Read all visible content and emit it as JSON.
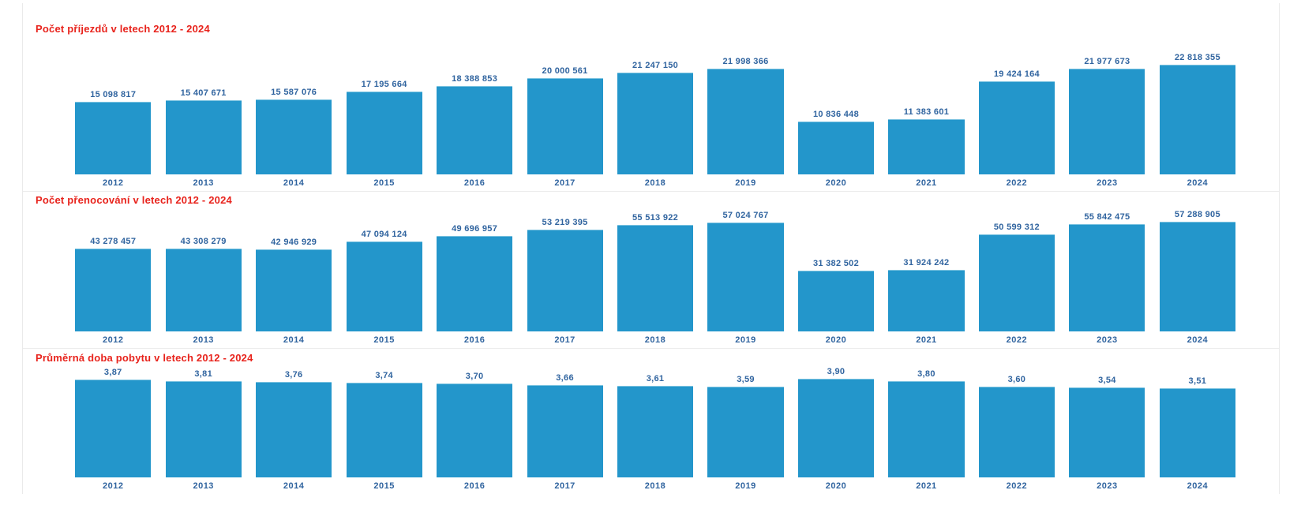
{
  "colors": {
    "bar_fill": "#2396cb",
    "label_text": "#30649f",
    "title_text": "#e8231c",
    "separator": "#ececec",
    "background": "#ffffff"
  },
  "chart_data": [
    {
      "type": "bar",
      "title": "Počet příjezdů v letech 2012 - 2024",
      "xlabel": "",
      "ylabel": "",
      "ylim": [
        0,
        22818355
      ],
      "grid": false,
      "legend": "none",
      "categories": [
        "2012",
        "2013",
        "2014",
        "2015",
        "2016",
        "2017",
        "2018",
        "2019",
        "2020",
        "2021",
        "2022",
        "2023",
        "2024"
      ],
      "values": [
        15098817,
        15407671,
        15587076,
        17195664,
        18388853,
        20000561,
        21247150,
        21998366,
        10836448,
        11383601,
        19424164,
        21977673,
        22818355
      ],
      "value_labels": [
        "15 098 817",
        "15 407 671",
        "15 587 076",
        "17 195 664",
        "18 388 853",
        "20 000 561",
        "21 247 150",
        "21 998 366",
        "10 836 448",
        "11 383 601",
        "19 424 164",
        "21 977 673",
        "22 818 355"
      ]
    },
    {
      "type": "bar",
      "title": "Počet přenocování v letech 2012 - 2024",
      "xlabel": "",
      "ylabel": "",
      "ylim": [
        0,
        57288905
      ],
      "grid": false,
      "legend": "none",
      "categories": [
        "2012",
        "2013",
        "2014",
        "2015",
        "2016",
        "2017",
        "2018",
        "2019",
        "2020",
        "2021",
        "2022",
        "2023",
        "2024"
      ],
      "values": [
        43278457,
        43308279,
        42946929,
        47094124,
        49696957,
        53219395,
        55513922,
        57024767,
        31382502,
        31924242,
        50599312,
        55842475,
        57288905
      ],
      "value_labels": [
        "43 278 457",
        "43 308 279",
        "42 946 929",
        "47 094 124",
        "49 696 957",
        "53 219 395",
        "55 513 922",
        "57 024 767",
        "31 382 502",
        "31 924 242",
        "50 599 312",
        "55 842 475",
        "57 288 905"
      ]
    },
    {
      "type": "bar",
      "title": "Průměrná doba pobytu v letech 2012 - 2024",
      "xlabel": "",
      "ylabel": "",
      "ylim": [
        0,
        3.9
      ],
      "grid": false,
      "legend": "none",
      "categories": [
        "2012",
        "2013",
        "2014",
        "2015",
        "2016",
        "2017",
        "2018",
        "2019",
        "2020",
        "2021",
        "2022",
        "2023",
        "2024"
      ],
      "values": [
        3.87,
        3.81,
        3.76,
        3.74,
        3.7,
        3.66,
        3.61,
        3.59,
        3.9,
        3.8,
        3.6,
        3.54,
        3.51
      ],
      "value_labels": [
        "3,87",
        "3,81",
        "3,76",
        "3,74",
        "3,70",
        "3,66",
        "3,61",
        "3,59",
        "3,90",
        "3,80",
        "3,60",
        "3,54",
        "3,51"
      ]
    }
  ]
}
